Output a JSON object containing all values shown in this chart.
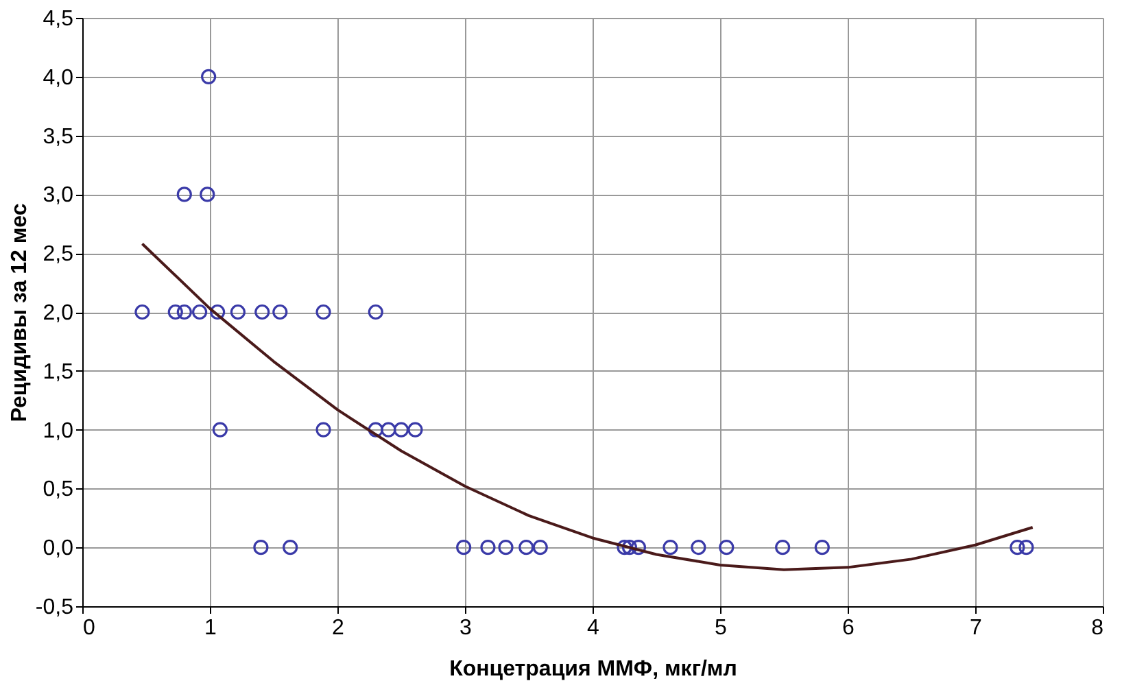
{
  "chart_data": {
    "type": "scatter",
    "xlabel": "Концетрация ММФ, мкг/мл",
    "ylabel": "Рецидивы за 12 мес",
    "xlim": [
      0,
      8
    ],
    "xticks": [
      0,
      1,
      2,
      3,
      4,
      5,
      6,
      7,
      8
    ],
    "ylim": [
      -0.5,
      4.5
    ],
    "yticks": [
      {
        "value": -0.5,
        "label": "-0,5"
      },
      {
        "value": 0,
        "label": "0,0"
      },
      {
        "value": 0.5,
        "label": "0,5"
      },
      {
        "value": 1,
        "label": "1,0"
      },
      {
        "value": 1.5,
        "label": "1,5"
      },
      {
        "value": 2,
        "label": "2,0"
      },
      {
        "value": 2.5,
        "label": "2,5"
      },
      {
        "value": 3,
        "label": "3,0"
      },
      {
        "value": 3.5,
        "label": "3,5"
      },
      {
        "value": 4,
        "label": "4,0"
      },
      {
        "value": 4.5,
        "label": "4,5"
      }
    ],
    "grid": true,
    "marker": "circle",
    "series": [
      {
        "color": "#3a3aa8",
        "x": [
          0.47,
          0.73,
          0.8,
          0.92,
          1.06,
          1.22,
          1.41,
          1.55,
          1.89,
          2.3,
          0.99,
          0.8,
          0.98,
          1.08,
          1.89,
          2.3,
          2.4,
          2.5,
          2.61,
          1.4,
          1.63,
          2.99,
          3.18,
          3.32,
          3.48,
          3.59,
          4.25,
          4.29,
          4.36,
          4.61,
          4.83,
          5.05,
          5.49,
          5.8,
          7.33,
          7.4
        ],
        "values": [
          2,
          2,
          2,
          2,
          2,
          2,
          2,
          2,
          2,
          2,
          4,
          3,
          3,
          1,
          1,
          1,
          1,
          1,
          1,
          0,
          0,
          0,
          0,
          0,
          0,
          0,
          0,
          0,
          0,
          0,
          0,
          0,
          0,
          0,
          0,
          0
        ]
      },
      {
        "type": "line",
        "color": "#4a1a1a",
        "marker": "none",
        "line_style": "solid",
        "x": [
          0.47,
          1,
          1.5,
          2,
          2.5,
          3,
          3.5,
          4,
          4.5,
          5,
          5.5,
          6,
          6.5,
          7,
          7.45
        ],
        "values": [
          2.58,
          2.03,
          1.58,
          1.17,
          0.82,
          0.52,
          0.27,
          0.08,
          -0.06,
          -0.15,
          -0.19,
          -0.17,
          -0.1,
          0.02,
          0.17
        ]
      }
    ]
  }
}
